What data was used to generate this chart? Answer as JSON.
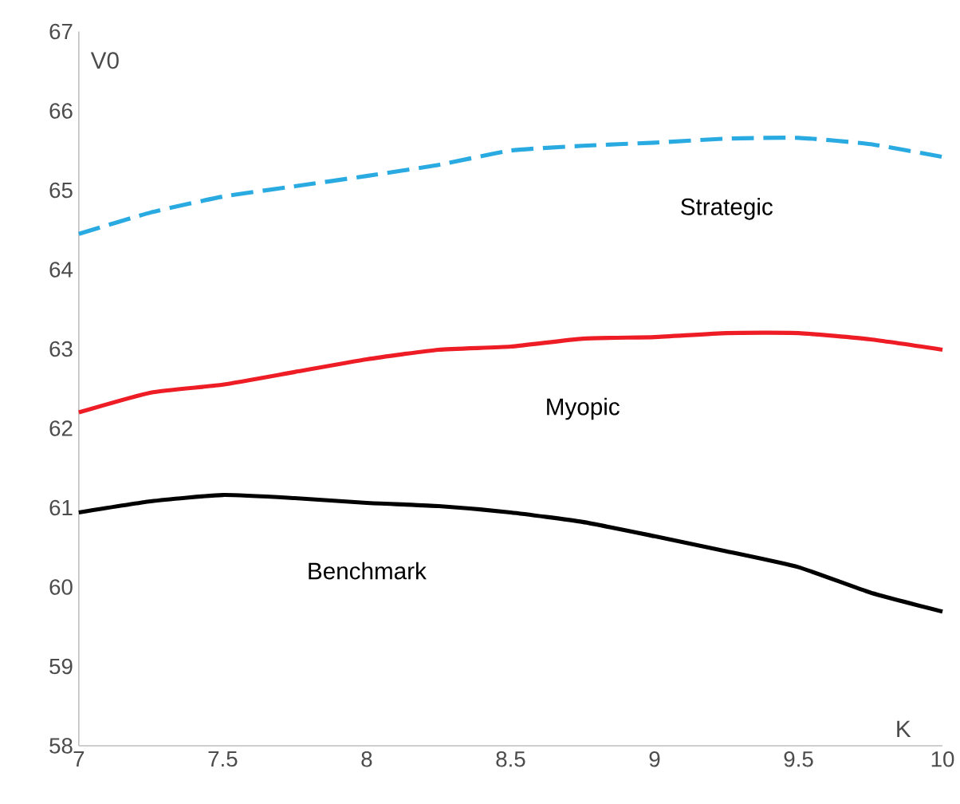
{
  "chart_data": {
    "type": "line",
    "xlabel": "K",
    "ylabel": "V0",
    "x": [
      7,
      7.25,
      7.5,
      7.75,
      8,
      8.25,
      8.5,
      8.75,
      9,
      9.25,
      9.5,
      9.75,
      10
    ],
    "series": [
      {
        "name": "Strategic",
        "color": "#29abe2",
        "line_style": "dashed",
        "values": [
          64.45,
          64.72,
          64.92,
          65.05,
          65.18,
          65.32,
          65.5,
          65.56,
          65.6,
          65.65,
          65.66,
          65.58,
          65.42
        ]
      },
      {
        "name": "Myopic",
        "color": "#ee1c25",
        "line_style": "solid",
        "values": [
          62.2,
          62.45,
          62.55,
          62.71,
          62.87,
          62.99,
          63.03,
          63.13,
          63.15,
          63.2,
          63.2,
          63.12,
          62.99
        ]
      },
      {
        "name": "Benchmark",
        "color": "#000000",
        "line_style": "solid",
        "values": [
          60.94,
          61.08,
          61.16,
          61.12,
          61.06,
          61.02,
          60.94,
          60.82,
          60.64,
          60.45,
          60.25,
          59.93,
          59.69
        ]
      }
    ],
    "xlim": [
      7,
      10
    ],
    "ylim": [
      58,
      67
    ],
    "xticks": [
      7,
      7.5,
      8,
      8.5,
      9,
      9.5,
      10
    ],
    "yticks": [
      58,
      59,
      60,
      61,
      62,
      63,
      64,
      65,
      66,
      67
    ],
    "grid": false,
    "legend": false,
    "marker": "none"
  }
}
